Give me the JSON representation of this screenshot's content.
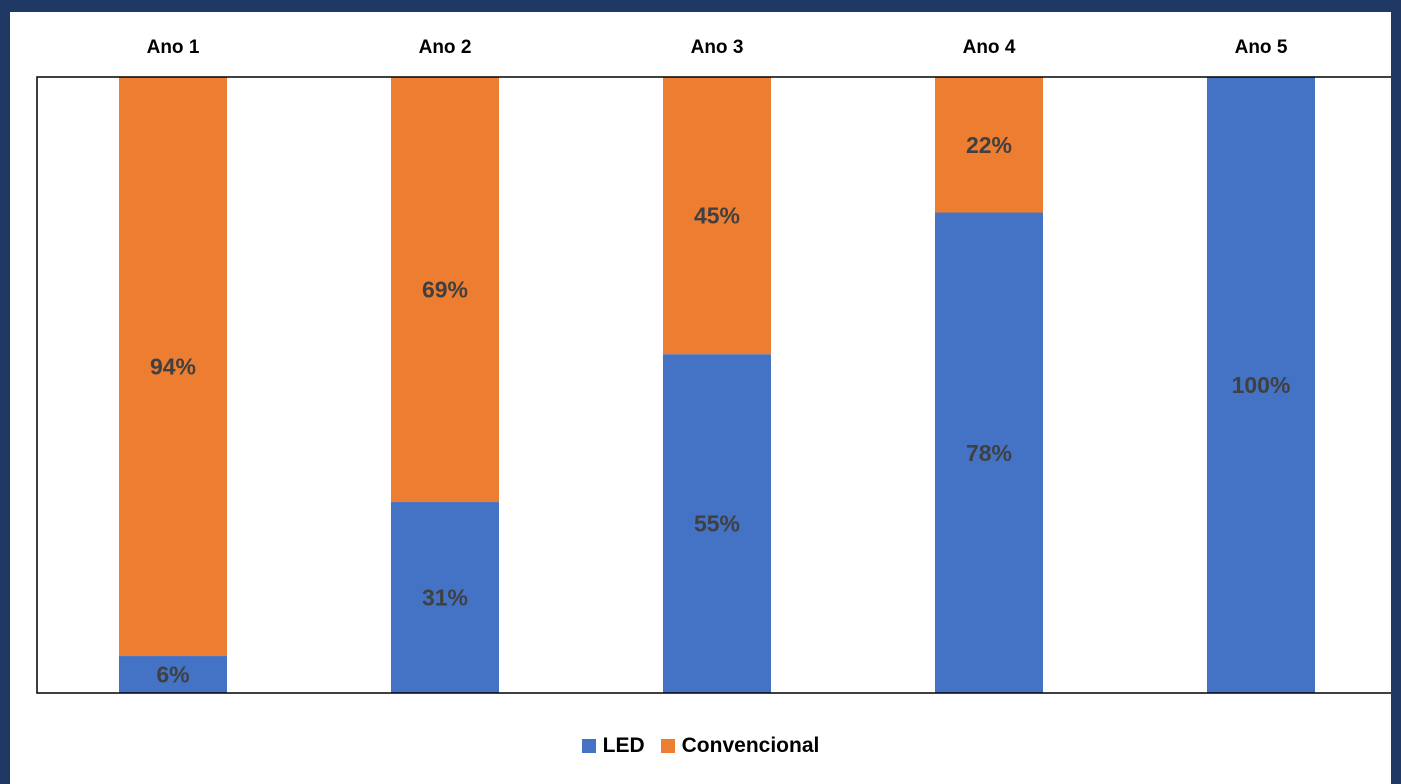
{
  "chart_data": {
    "type": "bar",
    "stacked": true,
    "percent_stacked": true,
    "categories": [
      "Ano 1",
      "Ano 2",
      "Ano 3",
      "Ano 4",
      "Ano 5"
    ],
    "category_axis_position": "top",
    "ylim": [
      0,
      100
    ],
    "grid": false,
    "legend_position": "bottom",
    "series": [
      {
        "name": "LED",
        "color": "#4472c4",
        "values": [
          6,
          31,
          55,
          78,
          100
        ],
        "labels": [
          "6%",
          "31%",
          "55%",
          "78%",
          "100%"
        ]
      },
      {
        "name": "Convencional",
        "color": "#ed7d31",
        "values": [
          94,
          69,
          45,
          22,
          0
        ],
        "labels": [
          "94%",
          "69%",
          "45%",
          "22%",
          ""
        ]
      }
    ]
  }
}
